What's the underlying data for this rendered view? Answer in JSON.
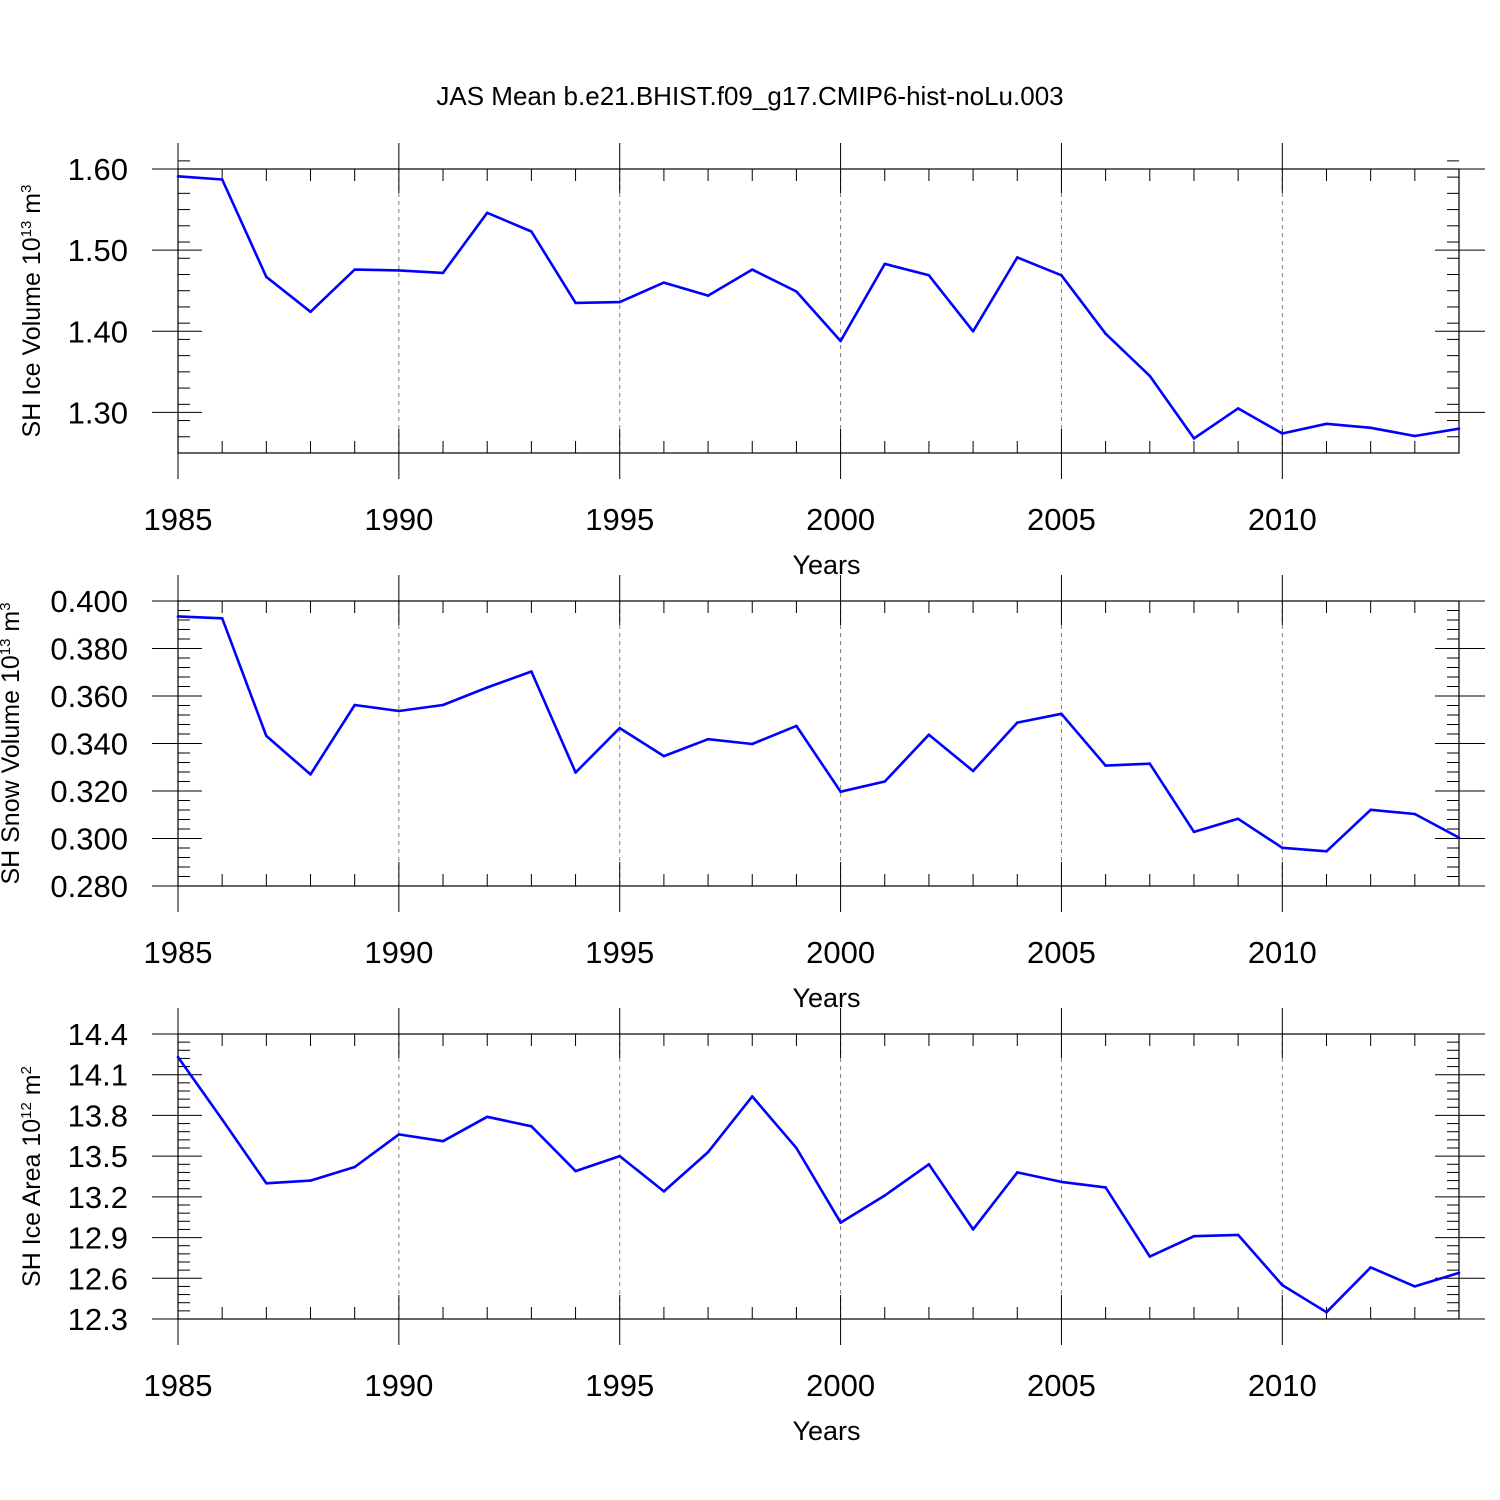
{
  "title": "JAS Mean b.e21.BHIST.f09_g17.CMIP6-hist-noLu.003",
  "colors": {
    "line": "#0000ff",
    "axis": "#000000",
    "grid": "#808080"
  },
  "chart_data": [
    {
      "type": "line",
      "ylabel": {
        "main": "SH Ice Volume 10",
        "exp": "13",
        "unit": " m",
        "unit_exp": "3"
      },
      "xlabel": "Years",
      "xlim": [
        1985,
        2014
      ],
      "ylim": [
        1.25,
        1.6
      ],
      "xticks": [
        1985,
        1990,
        1995,
        2000,
        2005,
        2010
      ],
      "xtick_labels": [
        "1985",
        "1990",
        "1995",
        "2000",
        "2005",
        "2010"
      ],
      "yticks": [
        1.3,
        1.4,
        1.5,
        1.6
      ],
      "ytick_labels": [
        "1.30",
        "1.40",
        "1.50",
        "1.60"
      ],
      "y_minor_step": 0.02,
      "grid": "vertical dashed at major x ticks",
      "x": [
        1985,
        1986,
        1987,
        1988,
        1989,
        1990,
        1991,
        1992,
        1993,
        1994,
        1995,
        1996,
        1997,
        1998,
        1999,
        2000,
        2001,
        2002,
        2003,
        2004,
        2005,
        2006,
        2007,
        2008,
        2009,
        2010,
        2011,
        2012,
        2013,
        2014
      ],
      "series": [
        {
          "values": [
            1.591,
            1.587,
            1.467,
            1.424,
            1.476,
            1.475,
            1.472,
            1.546,
            1.523,
            1.435,
            1.436,
            1.46,
            1.444,
            1.476,
            1.449,
            1.388,
            1.483,
            1.469,
            1.4,
            1.491,
            1.469,
            1.397,
            1.345,
            1.268,
            1.305,
            1.274,
            1.286,
            1.281,
            1.271,
            1.28
          ]
        }
      ]
    },
    {
      "type": "line",
      "ylabel": {
        "main": "SH Snow Volume 10",
        "exp": "13",
        "unit": " m",
        "unit_exp": "3"
      },
      "xlabel": "Years",
      "xlim": [
        1985,
        2014
      ],
      "ylim": [
        0.28,
        0.4
      ],
      "xticks": [
        1985,
        1990,
        1995,
        2000,
        2005,
        2010
      ],
      "xtick_labels": [
        "1985",
        "1990",
        "1995",
        "2000",
        "2005",
        "2010"
      ],
      "yticks": [
        0.28,
        0.3,
        0.32,
        0.34,
        0.36,
        0.38,
        0.4
      ],
      "ytick_labels": [
        "0.280",
        "0.300",
        "0.320",
        "0.340",
        "0.360",
        "0.380",
        "0.400"
      ],
      "y_minor_step": 0.004,
      "grid": "vertical dashed at major x ticks",
      "x": [
        1985,
        1986,
        1987,
        1988,
        1989,
        1990,
        1991,
        1992,
        1993,
        1994,
        1995,
        1996,
        1997,
        1998,
        1999,
        2000,
        2001,
        2002,
        2003,
        2004,
        2005,
        2006,
        2007,
        2008,
        2009,
        2010,
        2011,
        2012,
        2013,
        2014
      ],
      "series": [
        {
          "values": [
            0.3935,
            0.3927,
            0.3432,
            0.327,
            0.3562,
            0.3537,
            0.3562,
            0.3636,
            0.3703,
            0.3278,
            0.3465,
            0.3347,
            0.3418,
            0.3398,
            0.3474,
            0.3197,
            0.324,
            0.3437,
            0.3284,
            0.3488,
            0.3525,
            0.3307,
            0.3315,
            0.3028,
            0.3083,
            0.2961,
            0.2946,
            0.3121,
            0.3103,
            0.3004
          ]
        }
      ]
    },
    {
      "type": "line",
      "ylabel": {
        "main": "SH Ice Area 10",
        "exp": "12",
        "unit": " m",
        "unit_exp": "2"
      },
      "xlabel": "Years",
      "xlim": [
        1985,
        2014
      ],
      "ylim": [
        12.3,
        14.4
      ],
      "xticks": [
        1985,
        1990,
        1995,
        2000,
        2005,
        2010
      ],
      "xtick_labels": [
        "1985",
        "1990",
        "1995",
        "2000",
        "2005",
        "2010"
      ],
      "yticks": [
        12.3,
        12.6,
        12.9,
        13.2,
        13.5,
        13.8,
        14.1,
        14.4
      ],
      "ytick_labels": [
        "12.3",
        "12.6",
        "12.9",
        "13.2",
        "13.5",
        "13.8",
        "14.1",
        "14.4"
      ],
      "y_minor_step": 0.06,
      "grid": "vertical dashed at major x ticks",
      "x": [
        1985,
        1986,
        1987,
        1988,
        1989,
        1990,
        1991,
        1992,
        1993,
        1994,
        1995,
        1996,
        1997,
        1998,
        1999,
        2000,
        2001,
        2002,
        2003,
        2004,
        2005,
        2006,
        2007,
        2008,
        2009,
        2010,
        2011,
        2012,
        2013,
        2014
      ],
      "series": [
        {
          "values": [
            14.23,
            13.77,
            13.3,
            13.32,
            13.42,
            13.66,
            13.61,
            13.79,
            13.72,
            13.39,
            13.5,
            13.24,
            13.53,
            13.94,
            13.56,
            13.01,
            13.21,
            13.44,
            12.96,
            13.38,
            13.31,
            13.27,
            12.76,
            12.91,
            12.92,
            12.55,
            12.35,
            12.68,
            12.54,
            12.64
          ]
        }
      ]
    }
  ]
}
